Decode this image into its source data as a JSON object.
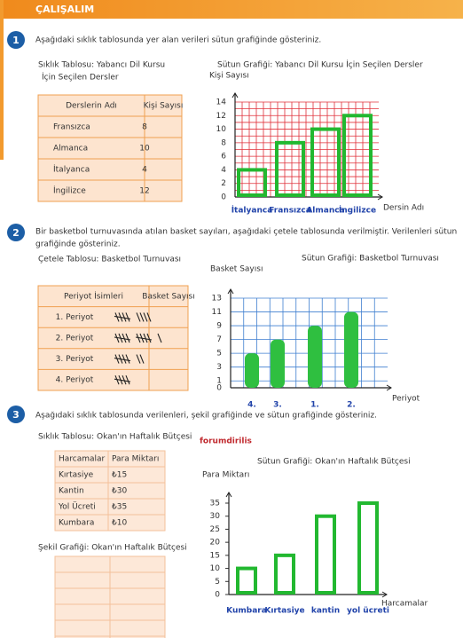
{
  "header": {
    "title": "ÇALIŞALIM"
  },
  "exercises": [
    {
      "number": "1",
      "instruction": [
        "Aşağıdaki sıklık tablosunda yer alan verileri sütun grafiğinde gösteriniz."
      ],
      "table": {
        "title": [
          "Sıklık Tablosu: Yabancı Dil Kursu",
          "İçin Seçilen Dersler"
        ],
        "columns": [
          "Derslerin Adı",
          "Kişi Sayısı"
        ],
        "rows": [
          [
            "Fransızca",
            8
          ],
          [
            "Almanca",
            10
          ],
          [
            "İtalyanca",
            4
          ],
          [
            "İngilizce",
            12
          ]
        ]
      },
      "chart": {
        "type": "bar",
        "title": "Sütun Grafiği: Yabancı Dil Kursu İçin Seçilen Dersler",
        "y_label": "Kişi Sayısı",
        "x_label": "Dersin Adı",
        "categories": [
          "İtalyanca",
          "Fransızca",
          "Almanca",
          "İngilizce"
        ],
        "values": [
          4,
          8,
          10,
          12
        ],
        "ylim": [
          0,
          14
        ],
        "yticks": [
          0,
          2,
          4,
          6,
          8,
          10,
          12,
          14
        ],
        "color": "#22b830",
        "grid_color": "#e0303a"
      }
    },
    {
      "number": "2",
      "instruction": [
        "Bir basketbol turnuvasında atılan basket sayıları, aşağıdaki çetele tablosunda verilmiştir. Verilenleri sütun",
        "grafiğinde gösteriniz."
      ],
      "table": {
        "title": [
          "Çetele Tablosu: Basketbol Turnuvası"
        ],
        "columns": [
          "Periyot İsimleri",
          "Basket Sayısı"
        ],
        "rows": [
          {
            "label": "1. Periyot",
            "tally": 9
          },
          {
            "label": "2. Periyot",
            "tally": 11
          },
          {
            "label": "3. Periyot",
            "tally": 7
          },
          {
            "label": "4. Periyot",
            "tally": 5
          }
        ]
      },
      "chart": {
        "type": "bar",
        "title": "Sütun Grafiği: Basketbol Turnuvası",
        "y_label": "Basket Sayısı",
        "x_label": "Periyot",
        "categories": [
          "4.",
          "3.",
          "1.",
          "2."
        ],
        "values": [
          5,
          7,
          9,
          11
        ],
        "ylim": [
          0,
          13
        ],
        "yticks": [
          0,
          1,
          3,
          5,
          7,
          9,
          11,
          13
        ],
        "color": "#2fbf40",
        "grid_color": "#3f7fd0"
      }
    },
    {
      "number": "3",
      "instruction": [
        "Aşağıdaki sıklık tablosunda verilenleri, şekil grafiğinde ve sütun grafiğinde gösteriniz."
      ],
      "table": {
        "title": [
          "Sıklık Tablosu: Okan'ın Haftalık Bütçesi"
        ],
        "columns": [
          "Harcamalar",
          "Para Miktarı"
        ],
        "rows": [
          [
            "Kırtasiye",
            "₺15"
          ],
          [
            "Kantin",
            "₺30"
          ],
          [
            "Yol Ücreti",
            "₺35"
          ],
          [
            "Kumbara",
            "₺10"
          ]
        ]
      },
      "watermark": "forumdirilis",
      "chart": {
        "type": "bar",
        "title": "Sütun Grafiği: Okan'ın Haftalık Bütçesi",
        "y_label": "Para Miktarı",
        "x_label": "Harcamalar",
        "categories": [
          "Kumbara",
          "Kırtasiye",
          "kantin",
          "yol ücreti"
        ],
        "values": [
          10,
          15,
          30,
          35
        ],
        "ylim": [
          0,
          35
        ],
        "yticks": [
          0,
          5,
          10,
          15,
          20,
          25,
          30,
          35
        ],
        "color": "#22b830"
      },
      "shape_chart": {
        "title": "Şekil Grafiği: Okan'ın Haftalık Bütçesi"
      }
    }
  ]
}
